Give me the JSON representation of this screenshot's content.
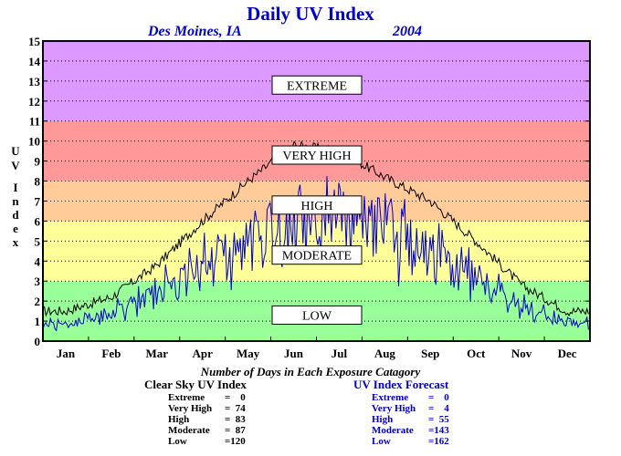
{
  "header": {
    "title": "Daily UV Index",
    "city": "Des Moines, IA",
    "year": "2004"
  },
  "chart_data": {
    "type": "line",
    "title": "Daily UV Index",
    "ylabel": "UV Index",
    "xlabel": "",
    "ylim": [
      0,
      15
    ],
    "yticks": [
      "0",
      "1",
      "2",
      "3",
      "4",
      "5",
      "6",
      "7",
      "8",
      "9",
      "10",
      "11",
      "12",
      "13",
      "14",
      "15"
    ],
    "categories": [
      "Jan",
      "Feb",
      "Mar",
      "Apr",
      "May",
      "Jun",
      "Jul",
      "Aug",
      "Sep",
      "Oct",
      "Nov",
      "Dec"
    ],
    "grid": true,
    "bands": [
      {
        "label": "LOW",
        "from": 0,
        "to": 3,
        "color": "#99ff99"
      },
      {
        "label": "MODERATE",
        "from": 3,
        "to": 6,
        "color": "#ffff99"
      },
      {
        "label": "HIGH",
        "from": 6,
        "to": 8,
        "color": "#ffcc99"
      },
      {
        "label": "VERY HIGH",
        "from": 8,
        "to": 11,
        "color": "#ff9999"
      },
      {
        "label": "EXTREME",
        "from": 11,
        "to": 15,
        "color": "#dd99ff"
      }
    ],
    "band_label_positions": [
      {
        "label": "EXTREME",
        "y": 12.8
      },
      {
        "label": "VERY HIGH",
        "y": 9.3
      },
      {
        "label": "HIGH",
        "y": 6.8
      },
      {
        "label": "MODERATE",
        "y": 4.3
      },
      {
        "label": "LOW",
        "y": 1.3
      }
    ],
    "series": [
      {
        "name": "Clear Sky UV Index",
        "color": "#000000",
        "months": [
          "Jan",
          "Feb",
          "Mar",
          "Apr",
          "May",
          "Jun",
          "Jul",
          "Aug",
          "Sep",
          "Oct",
          "Nov",
          "Dec"
        ],
        "daily_max_by_month": [
          1.5,
          2.2,
          3.8,
          6.0,
          8.0,
          9.8,
          9.5,
          8.2,
          7.0,
          5.0,
          2.8,
          1.5
        ]
      },
      {
        "name": "UV Index Forecast",
        "color": "#0000cc",
        "months": [
          "Jan",
          "Feb",
          "Mar",
          "Apr",
          "May",
          "Jun",
          "Jul",
          "Aug",
          "Sep",
          "Oct",
          "Nov",
          "Dec"
        ],
        "daily_max_by_month": [
          1.2,
          1.9,
          3.2,
          5.3,
          6.5,
          7.8,
          8.0,
          7.2,
          6.0,
          4.3,
          2.3,
          1.3
        ]
      }
    ]
  },
  "counts": {
    "heading": "Number of Days in Each Exposure Catagory",
    "clear_sky": {
      "title": "Clear Sky UV Index",
      "rows": [
        {
          "category": "Extreme",
          "value": "=    0"
        },
        {
          "category": "Very High",
          "value": "=  74"
        },
        {
          "category": "High",
          "value": "=  83"
        },
        {
          "category": "Moderate",
          "value": "=  87"
        },
        {
          "category": "Low",
          "value": "=120"
        }
      ]
    },
    "forecast": {
      "title": "UV Index Forecast",
      "rows": [
        {
          "category": "Extreme",
          "value": "=    0"
        },
        {
          "category": "Very High",
          "value": "=    4"
        },
        {
          "category": "High",
          "value": "=  55"
        },
        {
          "category": "Moderate",
          "value": "=143"
        },
        {
          "category": "Low",
          "value": "=162"
        }
      ]
    }
  }
}
